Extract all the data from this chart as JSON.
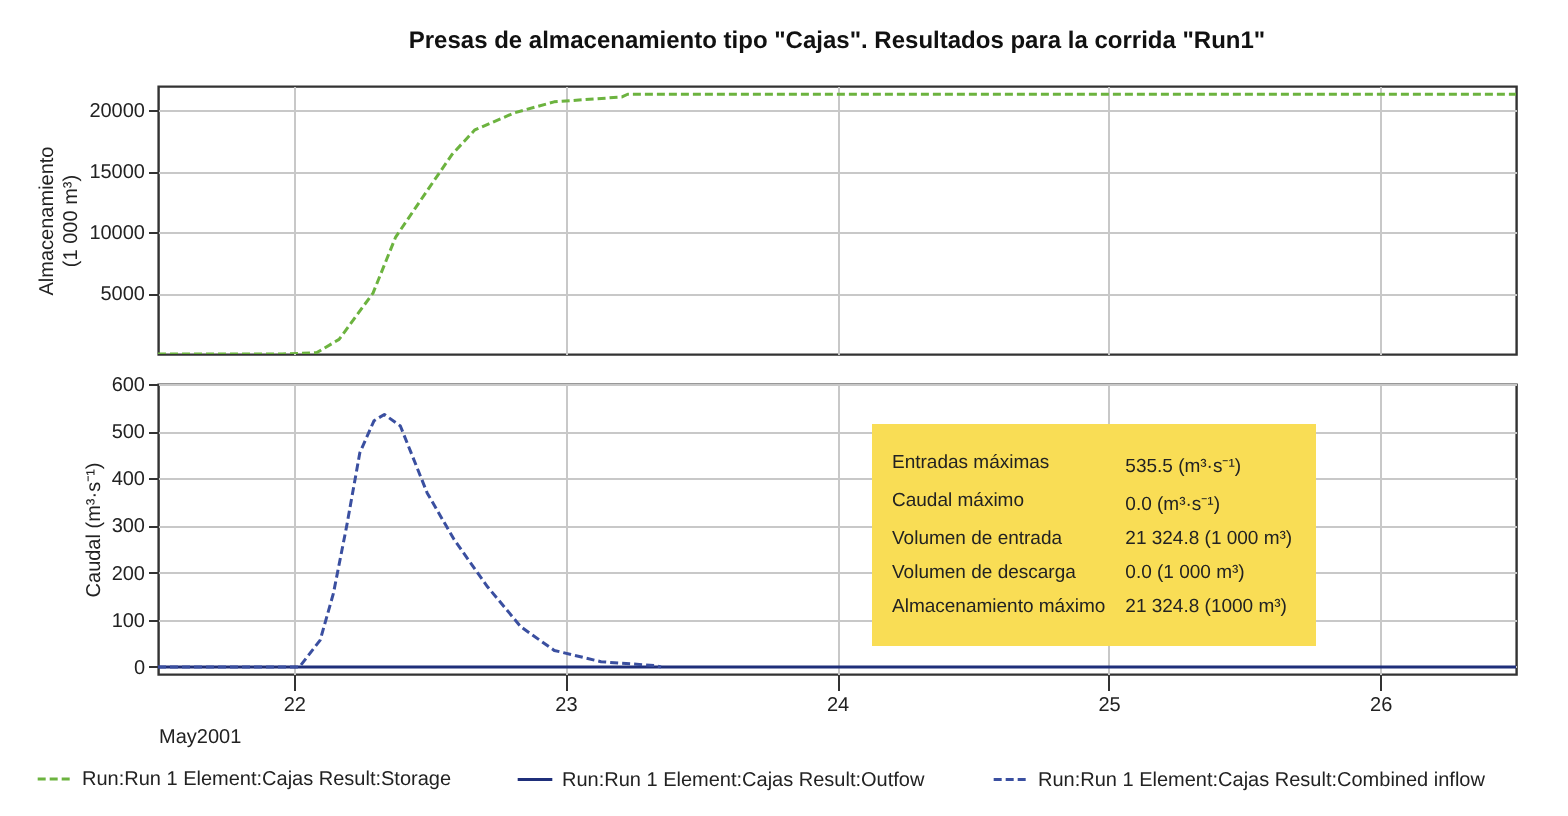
{
  "chart_data": [
    {
      "type": "line",
      "title": "Presas de almacenamiento tipo \"Cajas\". Resultados para la corrida \"Run1\"",
      "ylabel": "Almacenamiento\n(1 000 m³)",
      "xlim": [
        "2001-05-21T12:00",
        "2001-05-26T12:00"
      ],
      "xticks": [
        {
          "value": "2001-05-22T00:00",
          "label": null
        },
        {
          "value": "2001-05-23T00:00",
          "label": null
        },
        {
          "value": "2001-05-24T00:00",
          "label": null
        },
        {
          "value": "2001-05-25T00:00",
          "label": null
        },
        {
          "value": "2001-05-26T00:00",
          "label": null
        }
      ],
      "ylim": [
        0,
        22000
      ],
      "yticks": [
        5000,
        10000,
        15000,
        20000
      ],
      "grid": true,
      "tick_labels": "y",
      "legend": "bottom",
      "series": [
        {
          "name": "Run:Run 1 Element:Cajas Result:Storage",
          "color": "#6cb33f",
          "line_style": "dashed",
          "x": [
            "2001-05-21T12:00",
            "2001-05-21T23:00",
            "2001-05-22T02:00",
            "2001-05-22T04:00",
            "2001-05-22T07:00",
            "2001-05-22T09:00",
            "2001-05-22T12:00",
            "2001-05-22T14:00",
            "2001-05-22T16:00",
            "2001-05-22T19:30",
            "2001-05-22T23:00",
            "2001-05-23T05:00",
            "2001-05-23T05:30",
            "2001-05-26T12:00"
          ],
          "values": [
            0,
            0,
            100,
            1200,
            5000,
            9600,
            13700,
            16400,
            18400,
            19800,
            20700,
            21100,
            21324.8,
            21324.8
          ]
        }
      ]
    },
    {
      "type": "line",
      "ylabel": "Caudal (m³·s⁻¹)",
      "xlabel": "May2001",
      "xlim": [
        "2001-05-21T12:00",
        "2001-05-26T12:00"
      ],
      "xticks": [
        {
          "value": "2001-05-22T00:00",
          "label": "22"
        },
        {
          "value": "2001-05-23T00:00",
          "label": "23"
        },
        {
          "value": "2001-05-24T00:00",
          "label": "24"
        },
        {
          "value": "2001-05-25T00:00",
          "label": "25"
        },
        {
          "value": "2001-05-26T00:00",
          "label": "26"
        }
      ],
      "ylim": [
        -15,
        600
      ],
      "yticks": [
        0,
        100,
        200,
        300,
        400,
        500,
        600
      ],
      "grid": true,
      "legend": "bottom",
      "series": [
        {
          "name": "Run:Run 1 Element:Cajas Result:Outfow",
          "color": "#1f2f7a",
          "line_style": "solid",
          "x": [
            "2001-05-21T12:00",
            "2001-05-26T12:00"
          ],
          "values": [
            0,
            0
          ]
        },
        {
          "name": "Run:Run 1 Element:Cajas Result:Combined inflow",
          "color": "#3a4fa0",
          "line_style": "dashed",
          "x": [
            "2001-05-21T12:00",
            "2001-05-22T00:30",
            "2001-05-22T02:20",
            "2001-05-22T03:30",
            "2001-05-22T04:40",
            "2001-05-22T05:50",
            "2001-05-22T07:05",
            "2001-05-22T08:00",
            "2001-05-22T09:25",
            "2001-05-22T11:47",
            "2001-05-22T14:10",
            "2001-05-22T17:07",
            "2001-05-22T20:04",
            "2001-05-22T23:01",
            "2001-05-23T03:09",
            "2001-05-23T07:52",
            "2001-05-23T08:27"
          ],
          "values": [
            0,
            0,
            57,
            156,
            298,
            454,
            522,
            535.5,
            511,
            369,
            270,
            170,
            85,
            35,
            11,
            3,
            0
          ]
        }
      ],
      "annotations": [
        "Entradas máximas",
        "535.5 (m³·s⁻¹)",
        "Caudal máximo",
        "0.0 (m³·s⁻¹)",
        "Volumen de entrada",
        "21 324.8 (1 000 m³)",
        "Volumen de descarga",
        "0.0 (1 000 m³)",
        "Almacenamiento máximo",
        "21 324.8 (1000 m³)"
      ]
    }
  ]
}
